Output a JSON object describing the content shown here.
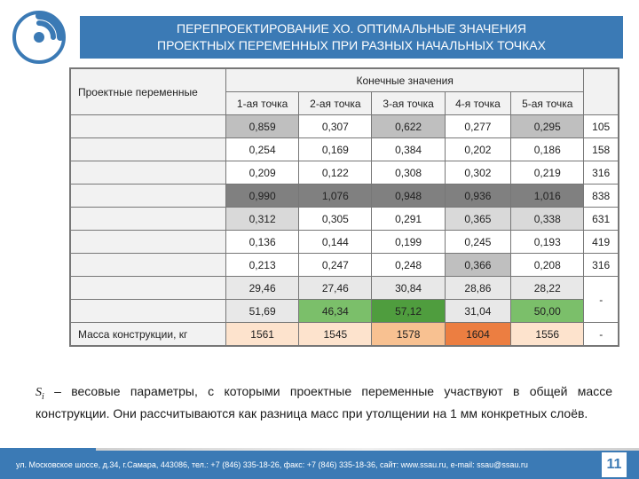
{
  "page_number": "11",
  "title_line1": "ПЕРЕПРОЕКТИРОВАНИЕ ХО. ОПТИМАЛЬНЫЕ ЗНАЧЕНИЯ",
  "title_line2": "ПРОЕКТНЫХ ПЕРЕМЕННЫХ ПРИ РАЗНЫХ НАЧАЛЬНЫХ ТОЧКАХ",
  "logo_color": "#3b7ab5",
  "table": {
    "header_top_left": "Проектные переменные",
    "header_top_mid": "Конечные значения",
    "columns": [
      "1-ая точка",
      "2-ая точка",
      "3-ая точка",
      "4-я точка",
      "5-ая точка"
    ],
    "trailing_header": "",
    "row_label_col_bg": "#f2f2f2",
    "rows": [
      {
        "label": "",
        "cells": [
          "0,859",
          "0,307",
          "0,622",
          "0,277",
          "0,295"
        ],
        "trail": "105",
        "bg": [
          "#bfbfbf",
          "#ffffff",
          "#bfbfbf",
          "#ffffff",
          "#bfbfbf"
        ]
      },
      {
        "label": "",
        "cells": [
          "0,254",
          "0,169",
          "0,384",
          "0,202",
          "0,186"
        ],
        "trail": "158",
        "bg": [
          "#ffffff",
          "#ffffff",
          "#ffffff",
          "#ffffff",
          "#ffffff"
        ]
      },
      {
        "label": "",
        "cells": [
          "0,209",
          "0,122",
          "0,308",
          "0,302",
          "0,219"
        ],
        "trail": "316",
        "bg": [
          "#ffffff",
          "#ffffff",
          "#ffffff",
          "#ffffff",
          "#ffffff"
        ]
      },
      {
        "label": "",
        "cells": [
          "0,990",
          "1,076",
          "0,948",
          "0,936",
          "1,016"
        ],
        "trail": "838",
        "bg": [
          "#808080",
          "#808080",
          "#808080",
          "#808080",
          "#808080"
        ]
      },
      {
        "label": "",
        "cells": [
          "0,312",
          "0,305",
          "0,291",
          "0,365",
          "0,338"
        ],
        "trail": "631",
        "bg": [
          "#d9d9d9",
          "#ffffff",
          "#ffffff",
          "#d9d9d9",
          "#d9d9d9"
        ]
      },
      {
        "label": "",
        "cells": [
          "0,136",
          "0,144",
          "0,199",
          "0,245",
          "0,193"
        ],
        "trail": "419",
        "bg": [
          "#ffffff",
          "#ffffff",
          "#ffffff",
          "#ffffff",
          "#ffffff"
        ]
      },
      {
        "label": "",
        "cells": [
          "0,213",
          "0,247",
          "0,248",
          "0,366",
          "0,208"
        ],
        "trail": "316",
        "bg": [
          "#ffffff",
          "#ffffff",
          "#ffffff",
          "#bfbfbf",
          "#ffffff"
        ]
      },
      {
        "label": "",
        "cells": [
          "29,46",
          "27,46",
          "30,84",
          "28,86",
          "28,22"
        ],
        "trail": "-",
        "trail_rowspan": 2,
        "bg": [
          "#e8e8e8",
          "#e8e8e8",
          "#e8e8e8",
          "#e8e8e8",
          "#e8e8e8"
        ]
      },
      {
        "label": "",
        "cells": [
          "51,69",
          "46,34",
          "57,12",
          "31,04",
          "50,00"
        ],
        "trail": null,
        "bg": [
          "#e8e8e8",
          "#7bbf6a",
          "#4f9d3e",
          "#e8e8e8",
          "#7bbf6a"
        ]
      },
      {
        "label": "Масса конструкции, кг",
        "cells": [
          "1561",
          "1545",
          "1578",
          "1604",
          "1556"
        ],
        "trail": "-",
        "bg": [
          "#fde3cd",
          "#fde3cd",
          "#f8c191",
          "#ec7e41",
          "#fde3cd"
        ]
      }
    ]
  },
  "caption": {
    "prefix": "S",
    "sub": "i",
    "text": " – весовые параметры, с которыми проектные переменные участвуют в общей массе конструкции. Они рассчитываются как разница масс при утолщении на 1 мм конкретных слоёв."
  },
  "footer_text": "ул. Московское шоссе, д.34, г.Самара, 443086, тел.: +7 (846) 335-18-26, факс: +7 (846) 335-18-36, сайт: www.ssau.ru, e-mail: ssau@ssau.ru",
  "footer_colors": [
    "#3b7ab5",
    "#ffffff",
    "#d0d0d0",
    "#b0b0b0"
  ]
}
